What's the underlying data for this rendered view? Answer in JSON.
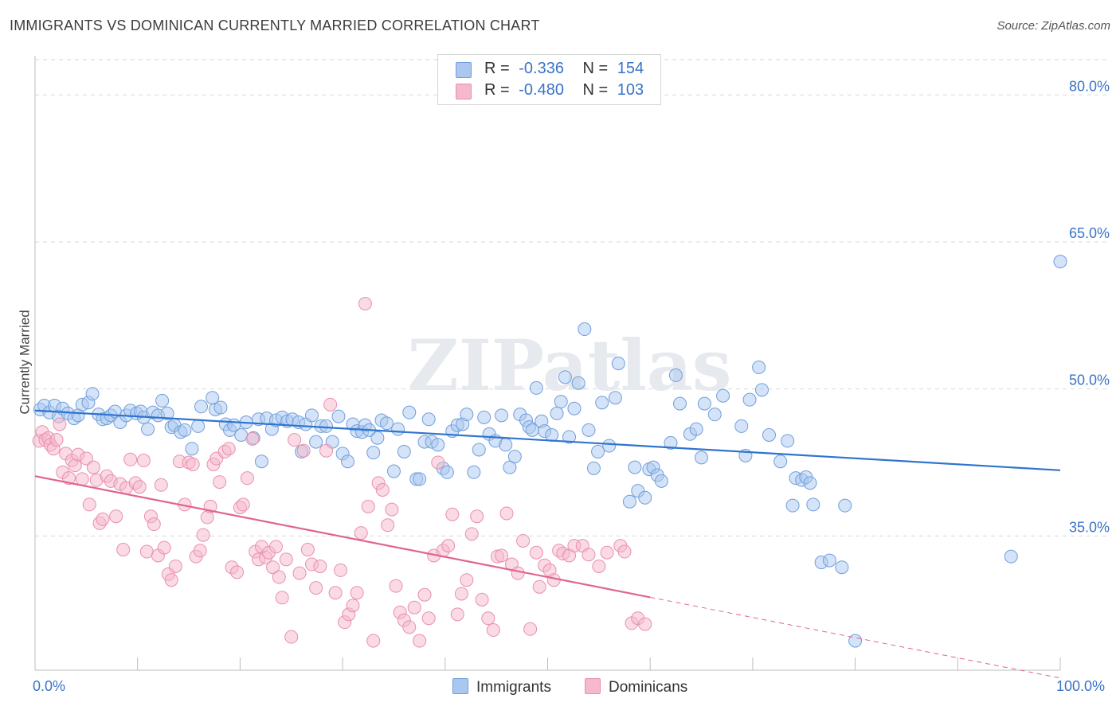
{
  "header": {
    "title": "IMMIGRANTS VS DOMINICAN CURRENTLY MARRIED CORRELATION CHART",
    "source": "Source: ZipAtlas.com"
  },
  "legend": {
    "immigrants": {
      "r_label": "R =",
      "r_value": "-0.336",
      "n_label": "N =",
      "n_value": "154"
    },
    "dominicans": {
      "r_label": "R =",
      "r_value": "-0.480",
      "n_label": "N =",
      "n_value": "103"
    }
  },
  "watermark": "ZIPatlas",
  "colors": {
    "blue_fill": "#a9c7ef",
    "blue_stroke": "#6f9fdc",
    "blue_line": "#2f74cf",
    "pink_fill": "#f6b8cc",
    "pink_stroke": "#e890ab",
    "pink_line": "#e0648f",
    "tick_text": "#3a73c9",
    "grid": "#d9d9d9"
  },
  "chart_data": {
    "type": "scatter",
    "title": "IMMIGRANTS VS DOMINICAN CURRENTLY MARRIED CORRELATION CHART",
    "xlabel": "",
    "ylabel": "Currently Married",
    "xlim": [
      0,
      100
    ],
    "ylim": [
      21.3,
      84.0
    ],
    "x_tick_labels": [
      "0.0%",
      "100.0%"
    ],
    "y_ticks": [
      35.0,
      50.0,
      65.0,
      80.0
    ],
    "y_tick_labels": [
      "35.0%",
      "50.0%",
      "65.0%",
      "80.0%"
    ],
    "grid": true,
    "legend_position": "top-center",
    "series": [
      {
        "name": "Immigrants",
        "color": "#a9c7ef",
        "trend": {
          "x": [
            0,
            100
          ],
          "y": [
            47.8,
            41.7
          ],
          "dashed_after": null
        },
        "points": [
          [
            0.5,
            47.9
          ],
          [
            0.9,
            48.3
          ],
          [
            1.4,
            47.6
          ],
          [
            1.9,
            48.3
          ],
          [
            2.3,
            47.2
          ],
          [
            2.7,
            48.0
          ],
          [
            3.2,
            47.5
          ],
          [
            3.8,
            47.0
          ],
          [
            4.2,
            47.3
          ],
          [
            4.6,
            48.4
          ],
          [
            5.2,
            48.6
          ],
          [
            5.6,
            49.5
          ],
          [
            6.2,
            47.4
          ],
          [
            6.6,
            46.9
          ],
          [
            7.0,
            47.0
          ],
          [
            7.4,
            47.3
          ],
          [
            7.8,
            47.7
          ],
          [
            8.3,
            46.6
          ],
          [
            8.9,
            47.3
          ],
          [
            9.3,
            47.8
          ],
          [
            9.9,
            47.5
          ],
          [
            10.3,
            47.7
          ],
          [
            10.6,
            47.1
          ],
          [
            11.0,
            45.9
          ],
          [
            11.5,
            47.6
          ],
          [
            12.0,
            47.3
          ],
          [
            12.4,
            48.8
          ],
          [
            12.9,
            47.5
          ],
          [
            13.3,
            46.1
          ],
          [
            13.6,
            46.3
          ],
          [
            14.2,
            45.6
          ],
          [
            14.6,
            45.8
          ],
          [
            15.3,
            43.9
          ],
          [
            15.9,
            46.2
          ],
          [
            16.2,
            48.2
          ],
          [
            17.3,
            49.1
          ],
          [
            17.6,
            47.9
          ],
          [
            18.1,
            48.1
          ],
          [
            18.6,
            46.4
          ],
          [
            19.0,
            45.8
          ],
          [
            19.4,
            46.3
          ],
          [
            20.1,
            45.3
          ],
          [
            20.6,
            46.6
          ],
          [
            21.3,
            45.0
          ],
          [
            21.8,
            46.9
          ],
          [
            22.1,
            42.6
          ],
          [
            22.6,
            47.0
          ],
          [
            23.1,
            45.9
          ],
          [
            23.5,
            46.8
          ],
          [
            24.1,
            47.1
          ],
          [
            24.6,
            46.7
          ],
          [
            25.1,
            46.9
          ],
          [
            25.7,
            46.6
          ],
          [
            26.0,
            43.6
          ],
          [
            26.4,
            46.4
          ],
          [
            27.0,
            47.3
          ],
          [
            27.4,
            44.6
          ],
          [
            27.9,
            46.2
          ],
          [
            28.4,
            46.2
          ],
          [
            29.0,
            44.6
          ],
          [
            29.6,
            47.2
          ],
          [
            30.0,
            43.4
          ],
          [
            30.5,
            42.6
          ],
          [
            31.0,
            46.4
          ],
          [
            31.4,
            45.7
          ],
          [
            31.9,
            45.6
          ],
          [
            32.2,
            46.3
          ],
          [
            32.6,
            45.8
          ],
          [
            33.0,
            43.5
          ],
          [
            33.4,
            45.0
          ],
          [
            33.8,
            46.8
          ],
          [
            34.3,
            46.5
          ],
          [
            35.0,
            41.6
          ],
          [
            35.4,
            45.9
          ],
          [
            36.0,
            43.6
          ],
          [
            36.5,
            47.6
          ],
          [
            37.2,
            40.8
          ],
          [
            37.5,
            40.8
          ],
          [
            38.0,
            44.6
          ],
          [
            38.4,
            46.9
          ],
          [
            38.7,
            44.6
          ],
          [
            39.3,
            44.3
          ],
          [
            39.8,
            41.9
          ],
          [
            40.2,
            41.5
          ],
          [
            40.7,
            45.7
          ],
          [
            41.2,
            46.3
          ],
          [
            41.7,
            46.4
          ],
          [
            42.1,
            47.4
          ],
          [
            42.8,
            41.5
          ],
          [
            43.3,
            43.8
          ],
          [
            43.8,
            47.1
          ],
          [
            44.3,
            45.4
          ],
          [
            44.9,
            44.7
          ],
          [
            45.5,
            47.3
          ],
          [
            45.9,
            44.3
          ],
          [
            46.3,
            42.0
          ],
          [
            46.8,
            43.1
          ],
          [
            47.3,
            47.4
          ],
          [
            47.9,
            46.8
          ],
          [
            48.2,
            46.1
          ],
          [
            48.5,
            45.8
          ],
          [
            48.9,
            50.1
          ],
          [
            49.4,
            46.7
          ],
          [
            49.7,
            45.7
          ],
          [
            50.4,
            45.3
          ],
          [
            50.9,
            47.5
          ],
          [
            51.3,
            48.7
          ],
          [
            51.7,
            51.2
          ],
          [
            52.1,
            45.1
          ],
          [
            52.6,
            48.0
          ],
          [
            53.0,
            50.6
          ],
          [
            53.6,
            56.1
          ],
          [
            54.0,
            45.8
          ],
          [
            54.5,
            41.9
          ],
          [
            54.9,
            43.6
          ],
          [
            55.3,
            48.6
          ],
          [
            56.0,
            44.2
          ],
          [
            56.6,
            49.1
          ],
          [
            56.9,
            52.6
          ],
          [
            58.0,
            38.5
          ],
          [
            58.5,
            42.0
          ],
          [
            58.8,
            39.6
          ],
          [
            59.5,
            38.9
          ],
          [
            59.9,
            41.8
          ],
          [
            60.3,
            42.0
          ],
          [
            60.7,
            41.2
          ],
          [
            61.1,
            40.6
          ],
          [
            62.0,
            44.5
          ],
          [
            62.5,
            51.4
          ],
          [
            62.9,
            48.5
          ],
          [
            63.9,
            45.4
          ],
          [
            64.5,
            45.9
          ],
          [
            65.0,
            43.0
          ],
          [
            65.3,
            48.5
          ],
          [
            66.3,
            47.4
          ],
          [
            67.1,
            49.3
          ],
          [
            68.9,
            46.2
          ],
          [
            69.3,
            43.2
          ],
          [
            69.7,
            48.9
          ],
          [
            70.6,
            52.2
          ],
          [
            70.9,
            49.9
          ],
          [
            71.6,
            45.3
          ],
          [
            72.7,
            42.6
          ],
          [
            73.4,
            44.7
          ],
          [
            73.9,
            38.1
          ],
          [
            74.2,
            40.9
          ],
          [
            74.8,
            40.7
          ],
          [
            75.2,
            41.0
          ],
          [
            75.6,
            40.4
          ],
          [
            75.9,
            38.2
          ],
          [
            76.7,
            32.3
          ],
          [
            77.5,
            32.5
          ],
          [
            78.7,
            31.8
          ],
          [
            79.0,
            38.1
          ],
          [
            80.0,
            24.3
          ],
          [
            95.2,
            32.9
          ],
          [
            100.0,
            63.0
          ]
        ]
      },
      {
        "name": "Dominicans",
        "color": "#f6b8cc",
        "trend": {
          "x": [
            0,
            100
          ],
          "y": [
            41.1,
            20.5
          ],
          "dashed_after": 60
        },
        "points": [
          [
            0.4,
            44.7
          ],
          [
            0.7,
            45.6
          ],
          [
            1.0,
            44.8
          ],
          [
            1.3,
            45.0
          ],
          [
            1.5,
            44.3
          ],
          [
            1.8,
            43.9
          ],
          [
            2.1,
            44.8
          ],
          [
            2.4,
            46.4
          ],
          [
            2.7,
            41.5
          ],
          [
            3.0,
            43.4
          ],
          [
            3.3,
            40.9
          ],
          [
            3.6,
            42.7
          ],
          [
            3.9,
            42.2
          ],
          [
            4.2,
            43.3
          ],
          [
            4.6,
            40.8
          ],
          [
            5.0,
            42.9
          ],
          [
            5.3,
            38.2
          ],
          [
            5.7,
            42.0
          ],
          [
            6.0,
            40.7
          ],
          [
            6.3,
            36.3
          ],
          [
            6.6,
            36.7
          ],
          [
            7.0,
            41.1
          ],
          [
            7.4,
            40.6
          ],
          [
            7.9,
            37.0
          ],
          [
            8.3,
            40.3
          ],
          [
            8.6,
            33.6
          ],
          [
            8.9,
            39.9
          ],
          [
            9.3,
            42.8
          ],
          [
            9.8,
            40.4
          ],
          [
            10.2,
            40.0
          ],
          [
            10.6,
            42.7
          ],
          [
            10.9,
            33.4
          ],
          [
            11.3,
            37.0
          ],
          [
            11.6,
            36.2
          ],
          [
            12.0,
            33.0
          ],
          [
            12.3,
            40.2
          ],
          [
            12.6,
            33.8
          ],
          [
            13.0,
            31.1
          ],
          [
            13.3,
            30.5
          ],
          [
            13.7,
            31.9
          ],
          [
            14.1,
            42.6
          ],
          [
            14.6,
            38.2
          ],
          [
            15.0,
            42.5
          ],
          [
            15.4,
            42.3
          ],
          [
            15.7,
            32.9
          ],
          [
            16.1,
            33.5
          ],
          [
            16.4,
            35.1
          ],
          [
            16.8,
            36.9
          ],
          [
            17.1,
            38.0
          ],
          [
            17.4,
            42.3
          ],
          [
            17.7,
            42.9
          ],
          [
            18.0,
            40.5
          ],
          [
            18.5,
            43.6
          ],
          [
            18.9,
            43.9
          ],
          [
            19.2,
            31.8
          ],
          [
            19.7,
            31.3
          ],
          [
            20.0,
            37.9
          ],
          [
            20.3,
            38.2
          ],
          [
            20.7,
            40.9
          ],
          [
            21.2,
            44.9
          ],
          [
            21.5,
            33.4
          ],
          [
            21.8,
            32.6
          ],
          [
            22.1,
            33.9
          ],
          [
            22.5,
            32.8
          ],
          [
            22.8,
            33.3
          ],
          [
            23.2,
            31.8
          ],
          [
            23.5,
            33.9
          ],
          [
            23.8,
            30.8
          ],
          [
            24.1,
            28.7
          ],
          [
            24.5,
            32.6
          ],
          [
            25.0,
            24.7
          ],
          [
            25.3,
            44.8
          ],
          [
            25.8,
            31.2
          ],
          [
            26.2,
            43.7
          ],
          [
            26.6,
            33.6
          ],
          [
            27.0,
            32.1
          ],
          [
            27.4,
            29.7
          ],
          [
            27.8,
            31.9
          ],
          [
            28.4,
            43.7
          ],
          [
            28.8,
            48.4
          ],
          [
            29.3,
            29.2
          ],
          [
            29.8,
            31.5
          ],
          [
            30.2,
            26.2
          ],
          [
            30.6,
            27.0
          ],
          [
            31.0,
            27.9
          ],
          [
            31.4,
            29.2
          ],
          [
            31.8,
            35.3
          ],
          [
            32.2,
            58.7
          ],
          [
            32.5,
            38.0
          ],
          [
            33.0,
            24.3
          ],
          [
            33.5,
            40.4
          ],
          [
            33.9,
            39.7
          ],
          [
            34.4,
            36.1
          ],
          [
            34.8,
            37.7
          ],
          [
            35.2,
            29.9
          ],
          [
            35.6,
            27.2
          ],
          [
            36.0,
            26.4
          ],
          [
            36.5,
            25.7
          ],
          [
            37.0,
            27.7
          ],
          [
            37.5,
            24.3
          ],
          [
            38.0,
            29.0
          ],
          [
            38.4,
            26.6
          ],
          [
            38.9,
            33.0
          ],
          [
            39.3,
            42.5
          ],
          [
            39.8,
            33.5
          ],
          [
            40.3,
            34.0
          ],
          [
            40.7,
            37.2
          ],
          [
            41.2,
            27.0
          ],
          [
            41.6,
            29.1
          ],
          [
            42.1,
            30.5
          ],
          [
            42.6,
            35.2
          ],
          [
            43.1,
            37.0
          ],
          [
            43.6,
            28.5
          ],
          [
            44.2,
            26.6
          ],
          [
            44.7,
            25.4
          ],
          [
            45.1,
            32.9
          ],
          [
            45.5,
            33.0
          ],
          [
            46.0,
            37.3
          ],
          [
            46.5,
            32.1
          ],
          [
            47.1,
            31.2
          ],
          [
            47.6,
            34.5
          ],
          [
            48.3,
            25.5
          ],
          [
            48.9,
            33.3
          ],
          [
            49.2,
            29.8
          ],
          [
            49.7,
            32.0
          ],
          [
            50.2,
            31.5
          ],
          [
            50.6,
            30.5
          ],
          [
            51.1,
            33.5
          ],
          [
            51.5,
            33.2
          ],
          [
            52.1,
            33.0
          ],
          [
            52.6,
            34.0
          ],
          [
            53.4,
            34.0
          ],
          [
            54.0,
            33.1
          ],
          [
            55.0,
            31.9
          ],
          [
            55.8,
            33.3
          ],
          [
            57.1,
            34.0
          ],
          [
            57.5,
            33.4
          ],
          [
            58.2,
            26.1
          ],
          [
            58.8,
            26.6
          ],
          [
            59.5,
            26.0
          ]
        ]
      }
    ]
  }
}
